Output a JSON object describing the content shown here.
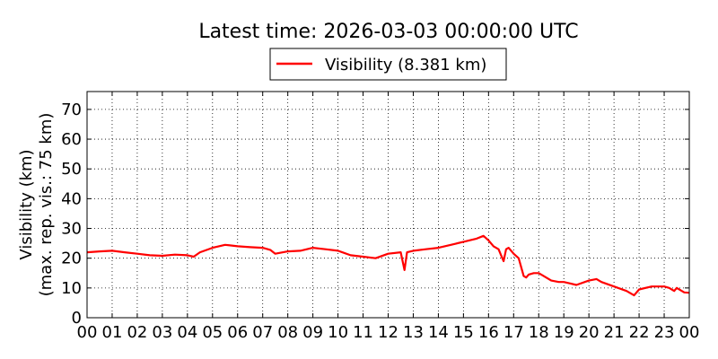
{
  "chart_data": {
    "type": "line",
    "title": "Latest time: 2026-03-03 00:00:00 UTC",
    "xlabel": "",
    "ylabel_line1": "Visibility (km)",
    "ylabel_line2": "(max. rep. vis.: 75 km)",
    "xlim": [
      0,
      24
    ],
    "ylim": [
      0,
      76
    ],
    "grid": true,
    "legend_position": "top-center",
    "x_ticks": [
      0,
      1,
      2,
      3,
      4,
      5,
      6,
      7,
      8,
      9,
      10,
      11,
      12,
      13,
      14,
      15,
      16,
      17,
      18,
      19,
      20,
      21,
      22,
      23,
      24
    ],
    "x_tick_labels": [
      "00",
      "01",
      "02",
      "03",
      "04",
      "05",
      "06",
      "07",
      "08",
      "09",
      "10",
      "11",
      "12",
      "13",
      "14",
      "15",
      "16",
      "17",
      "18",
      "19",
      "20",
      "21",
      "22",
      "23",
      "00"
    ],
    "y_ticks": [
      0,
      10,
      20,
      30,
      40,
      50,
      60,
      70
    ],
    "y_tick_labels": [
      "0",
      "10",
      "20",
      "30",
      "40",
      "50",
      "60",
      "70"
    ],
    "series": [
      {
        "name": "Visibility (8.381 km)",
        "color": "#ff0000",
        "x": [
          0,
          0.5,
          1,
          1.5,
          2,
          2.5,
          3,
          3.5,
          4,
          4.25,
          4.5,
          5,
          5.5,
          6,
          6.5,
          7,
          7.3,
          7.5,
          8,
          8.5,
          9,
          9.5,
          10,
          10.5,
          11,
          11.5,
          12,
          12.5,
          12.65,
          12.75,
          13,
          13.5,
          14,
          14.5,
          15,
          15.5,
          15.8,
          16,
          16.2,
          16.4,
          16.5,
          16.6,
          16.7,
          16.8,
          17,
          17.2,
          17.4,
          17.5,
          17.6,
          17.8,
          18,
          18.5,
          18.8,
          19,
          19.5,
          20,
          20.3,
          20.5,
          21,
          21.5,
          21.8,
          22,
          22.5,
          23,
          23.2,
          23.4,
          23.5,
          23.8,
          24
        ],
        "values": [
          22.0,
          22.3,
          22.5,
          22.0,
          21.5,
          21.0,
          20.8,
          21.2,
          21.0,
          20.5,
          22.0,
          23.5,
          24.5,
          24.0,
          23.7,
          23.5,
          22.8,
          21.5,
          22.3,
          22.5,
          23.5,
          23.0,
          22.5,
          21.0,
          20.5,
          20.0,
          21.5,
          22.0,
          16.0,
          22.0,
          22.5,
          23.0,
          23.5,
          24.5,
          25.5,
          26.5,
          27.5,
          26.0,
          24.0,
          23.0,
          21.0,
          19.0,
          23.0,
          23.5,
          21.5,
          20.0,
          14.0,
          13.5,
          14.5,
          15.0,
          15.0,
          12.5,
          12.0,
          12.0,
          11.0,
          12.5,
          13.0,
          12.0,
          10.5,
          9.0,
          7.5,
          9.5,
          10.5,
          10.5,
          10.0,
          9.0,
          10.0,
          8.5,
          8.381
        ]
      }
    ]
  }
}
